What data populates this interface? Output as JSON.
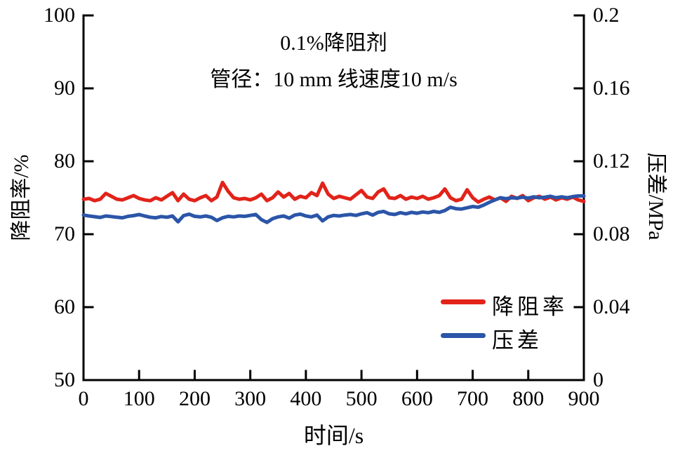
{
  "colors": {
    "red": "#e2231a",
    "blue": "#2b55a8",
    "axis": "#000000",
    "background": "#ffffff"
  },
  "chart_data": {
    "type": "line",
    "title_lines": [
      "0.1%降阻剂",
      "管径：10 mm   线速度10 m/s"
    ],
    "xlabel": "时间/s",
    "ylabel_left": "降阻率/%",
    "ylabel_right": "压差/MPa",
    "xlim": [
      0,
      900
    ],
    "ylim_left": [
      50,
      100
    ],
    "ylim_right": [
      0,
      0.2
    ],
    "grid": false,
    "xticks": [
      0,
      100,
      200,
      300,
      400,
      500,
      600,
      700,
      800,
      900
    ],
    "xtick_labels": [
      "0",
      "100",
      "200",
      "300",
      "400",
      "500",
      "600",
      "700",
      "800",
      "900"
    ],
    "yticks_left": [
      50,
      60,
      70,
      80,
      90,
      100
    ],
    "ytick_labels_left": [
      "50",
      "60",
      "70",
      "80",
      "90",
      "100"
    ],
    "yticks_right": [
      0,
      0.04,
      0.08,
      0.12,
      0.16,
      0.2
    ],
    "ytick_labels_right": [
      "0",
      "0.04",
      "0.08",
      "0.12",
      "0.16",
      "0.2"
    ],
    "legend": {
      "position": "inside lower right",
      "entries": [
        {
          "label": "降阻率",
          "color": "#e2231a"
        },
        {
          "label": "压差",
          "color": "#2b55a8"
        }
      ]
    },
    "x": [
      0,
      10,
      20,
      30,
      40,
      50,
      60,
      70,
      80,
      90,
      100,
      110,
      120,
      130,
      140,
      150,
      160,
      170,
      180,
      190,
      200,
      210,
      220,
      230,
      240,
      250,
      260,
      270,
      280,
      290,
      300,
      310,
      320,
      330,
      340,
      350,
      360,
      370,
      380,
      390,
      400,
      410,
      420,
      430,
      440,
      450,
      460,
      470,
      480,
      490,
      500,
      510,
      520,
      530,
      540,
      550,
      560,
      570,
      580,
      590,
      600,
      610,
      620,
      630,
      640,
      650,
      660,
      670,
      680,
      690,
      700,
      710,
      720,
      730,
      740,
      750,
      760,
      770,
      780,
      790,
      800,
      810,
      820,
      830,
      840,
      850,
      860,
      870,
      880,
      890,
      900
    ],
    "series": [
      {
        "name": "降阻率",
        "axis": "left",
        "unit": "%",
        "color": "#e2231a",
        "values": [
          74.8,
          74.9,
          74.6,
          74.8,
          75.6,
          75.2,
          74.8,
          74.7,
          75.0,
          75.3,
          74.9,
          74.7,
          74.6,
          75.0,
          74.7,
          75.2,
          75.7,
          74.6,
          75.5,
          74.8,
          74.6,
          75.0,
          75.3,
          74.6,
          75.1,
          77.1,
          75.9,
          75.0,
          74.8,
          74.9,
          74.7,
          75.0,
          75.5,
          74.6,
          75.0,
          75.8,
          75.1,
          75.6,
          74.8,
          75.2,
          75.0,
          75.7,
          75.3,
          77.0,
          75.5,
          74.9,
          75.2,
          75.0,
          74.8,
          75.4,
          76.0,
          75.1,
          74.9,
          75.8,
          76.2,
          75.0,
          74.9,
          75.3,
          74.8,
          75.1,
          74.9,
          75.2,
          74.8,
          75.0,
          75.3,
          76.2,
          75.0,
          74.6,
          74.8,
          76.1,
          75.0,
          74.4,
          74.8,
          75.1,
          74.7,
          75.0,
          74.5,
          75.2,
          74.9,
          75.3,
          74.6,
          75.0,
          75.2,
          74.8,
          75.1,
          74.7,
          75.0,
          74.8,
          75.1,
          74.7,
          74.5
        ]
      },
      {
        "name": "压差",
        "axis": "right",
        "unit": "MPa",
        "color": "#2b55a8",
        "values": [
          0.0905,
          0.09,
          0.0896,
          0.0892,
          0.09,
          0.0897,
          0.0893,
          0.089,
          0.0898,
          0.0902,
          0.0908,
          0.09,
          0.0893,
          0.089,
          0.0897,
          0.0893,
          0.09,
          0.0868,
          0.0902,
          0.091,
          0.0898,
          0.0895,
          0.09,
          0.0893,
          0.0875,
          0.089,
          0.0898,
          0.0895,
          0.09,
          0.0898,
          0.0903,
          0.0908,
          0.088,
          0.0865,
          0.0885,
          0.0895,
          0.09,
          0.0888,
          0.0905,
          0.091,
          0.09,
          0.0895,
          0.0905,
          0.0873,
          0.0895,
          0.0903,
          0.09,
          0.0905,
          0.0908,
          0.0903,
          0.0912,
          0.0918,
          0.0905,
          0.092,
          0.0925,
          0.0912,
          0.0908,
          0.0918,
          0.0912,
          0.092,
          0.0915,
          0.0922,
          0.0918,
          0.0925,
          0.092,
          0.093,
          0.0948,
          0.094,
          0.0938,
          0.0945,
          0.0952,
          0.0948,
          0.096,
          0.0975,
          0.0988,
          0.1,
          0.0995,
          0.1,
          0.0998,
          0.1003,
          0.0998,
          0.1005,
          0.1,
          0.1003,
          0.1008,
          0.1,
          0.1005,
          0.1,
          0.1006,
          0.101,
          0.101
        ]
      }
    ]
  }
}
